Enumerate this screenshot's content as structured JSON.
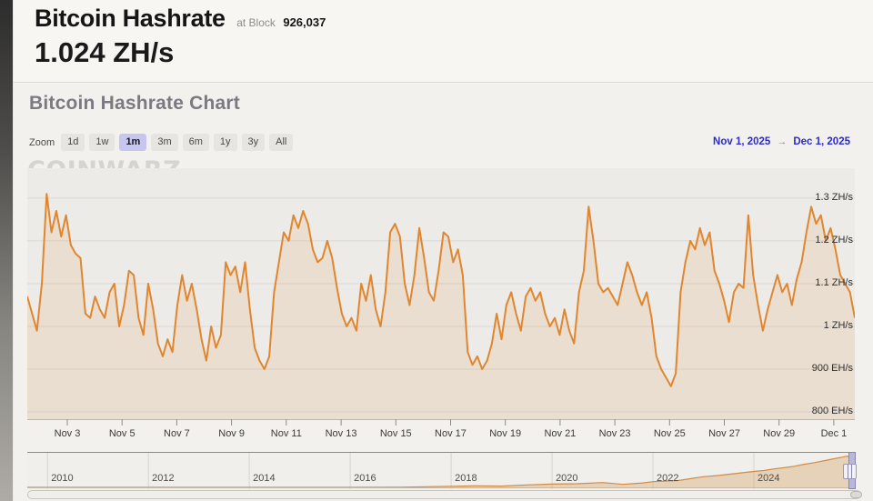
{
  "header": {
    "title": "Bitcoin Hashrate",
    "at_block_label": "at Block",
    "block_number": "926,037",
    "current_value": "1.024 ZH/s"
  },
  "chart_section": {
    "title": "Bitcoin Hashrate Chart",
    "zoom_label": "Zoom",
    "zoom_buttons": [
      "1d",
      "1w",
      "1m",
      "3m",
      "6m",
      "1y",
      "3y",
      "All"
    ],
    "selected_zoom": "1m",
    "date_from": "Nov 1, 2025",
    "date_arrow": "→",
    "date_to": "Dec 1, 2025",
    "watermark": "COINWARZ"
  },
  "chart_data": {
    "type": "area",
    "title": "Bitcoin Hashrate Chart",
    "series_name": "Bitcoin Hashrate",
    "unit": "ZH/s",
    "x_range": [
      "Nov 1, 2025",
      "Dec 1, 2025"
    ],
    "x_tick_labels": [
      "Nov 3",
      "Nov 5",
      "Nov 7",
      "Nov 9",
      "Nov 11",
      "Nov 13",
      "Nov 15",
      "Nov 17",
      "Nov 19",
      "Nov 21",
      "Nov 23",
      "Nov 25",
      "Nov 27",
      "Nov 29",
      "Dec 1"
    ],
    "y_tick_labels": [
      "1.3 ZH/s",
      "1.2 ZH/s",
      "1.1 ZH/s",
      "1 ZH/s",
      "900 EH/s",
      "800 EH/s"
    ],
    "y_tick_values_zhs": [
      1.3,
      1.2,
      1.1,
      1.0,
      0.9,
      0.8
    ],
    "ylim_zhs": [
      0.783,
      1.37
    ],
    "grid": "horizontal",
    "legend": "none",
    "values_zhs": [
      1.07,
      1.03,
      0.99,
      1.1,
      1.31,
      1.22,
      1.27,
      1.21,
      1.26,
      1.19,
      1.17,
      1.16,
      1.03,
      1.02,
      1.07,
      1.04,
      1.02,
      1.08,
      1.1,
      1.0,
      1.05,
      1.13,
      1.12,
      1.02,
      0.98,
      1.1,
      1.04,
      0.96,
      0.93,
      0.97,
      0.94,
      1.05,
      1.12,
      1.06,
      1.1,
      1.04,
      0.97,
      0.92,
      1.0,
      0.95,
      0.98,
      1.15,
      1.12,
      1.14,
      1.08,
      1.15,
      1.04,
      0.95,
      0.92,
      0.9,
      0.93,
      1.08,
      1.15,
      1.22,
      1.2,
      1.26,
      1.23,
      1.27,
      1.24,
      1.18,
      1.15,
      1.16,
      1.2,
      1.16,
      1.09,
      1.03,
      1.0,
      1.02,
      0.99,
      1.1,
      1.06,
      1.12,
      1.04,
      1.0,
      1.08,
      1.22,
      1.24,
      1.21,
      1.1,
      1.05,
      1.12,
      1.23,
      1.16,
      1.08,
      1.06,
      1.13,
      1.22,
      1.21,
      1.15,
      1.18,
      1.12,
      0.94,
      0.91,
      0.93,
      0.9,
      0.92,
      0.96,
      1.03,
      0.97,
      1.05,
      1.08,
      1.03,
      0.99,
      1.07,
      1.09,
      1.06,
      1.08,
      1.03,
      1.0,
      1.02,
      0.98,
      1.04,
      0.99,
      0.96,
      1.08,
      1.13,
      1.28,
      1.2,
      1.1,
      1.08,
      1.09,
      1.07,
      1.05,
      1.1,
      1.15,
      1.12,
      1.08,
      1.05,
      1.08,
      1.02,
      0.93,
      0.9,
      0.88,
      0.86,
      0.89,
      1.08,
      1.15,
      1.2,
      1.18,
      1.23,
      1.19,
      1.22,
      1.13,
      1.1,
      1.06,
      1.01,
      1.08,
      1.1,
      1.09,
      1.26,
      1.12,
      1.05,
      0.99,
      1.04,
      1.08,
      1.12,
      1.08,
      1.1,
      1.05,
      1.11,
      1.15,
      1.22,
      1.28,
      1.24,
      1.26,
      1.2,
      1.23,
      1.18,
      1.12,
      1.1,
      1.08,
      1.02
    ]
  },
  "navigator": {
    "year_labels": [
      "2010",
      "2012",
      "2014",
      "2016",
      "2018",
      "2020",
      "2022",
      "2024"
    ],
    "year_values": [
      2010,
      2012,
      2014,
      2016,
      2018,
      2020,
      2022,
      2024
    ],
    "x_domain_years": [
      2009.6,
      2026.0
    ],
    "y_max_ehs": 1150,
    "selected_range": "right-edge (Nov 1, 2025 - Dec 1, 2025)",
    "points_year_ehs": [
      [
        2009.6,
        0
      ],
      [
        2010,
        1e-05
      ],
      [
        2011,
        0.0001
      ],
      [
        2012,
        0.02
      ],
      [
        2013,
        0.01
      ],
      [
        2014,
        0.25
      ],
      [
        2015,
        0.4
      ],
      [
        2016,
        1.5
      ],
      [
        2017,
        7
      ],
      [
        2018,
        38
      ],
      [
        2018.5,
        52
      ],
      [
        2019,
        46
      ],
      [
        2019.5,
        85
      ],
      [
        2020,
        115
      ],
      [
        2020.5,
        128
      ],
      [
        2021,
        170
      ],
      [
        2021.4,
        105
      ],
      [
        2021.8,
        155
      ],
      [
        2022,
        200
      ],
      [
        2022.5,
        240
      ],
      [
        2023,
        375
      ],
      [
        2023.3,
        420
      ],
      [
        2023.6,
        480
      ],
      [
        2024,
        560
      ],
      [
        2024.2,
        590
      ],
      [
        2024.4,
        650
      ],
      [
        2024.6,
        690
      ],
      [
        2024.8,
        740
      ],
      [
        2025,
        810
      ],
      [
        2025.2,
        870
      ],
      [
        2025.4,
        940
      ],
      [
        2025.6,
        1010
      ],
      [
        2025.75,
        1060
      ],
      [
        2025.85,
        1100
      ],
      [
        2025.92,
        1024
      ]
    ]
  },
  "colors": {
    "line_orange": "#e0862f",
    "area_fill": "rgba(216,158,84,0.16)",
    "nav_line": "#cf8c44",
    "nav_fill": "rgba(212,164,100,0.38)",
    "selected_zoom_bg": "#c7c6ee",
    "date_link_blue": "#2b2bcf",
    "gridline": "#dad8d4",
    "plot_bg": "#ecebe8"
  }
}
